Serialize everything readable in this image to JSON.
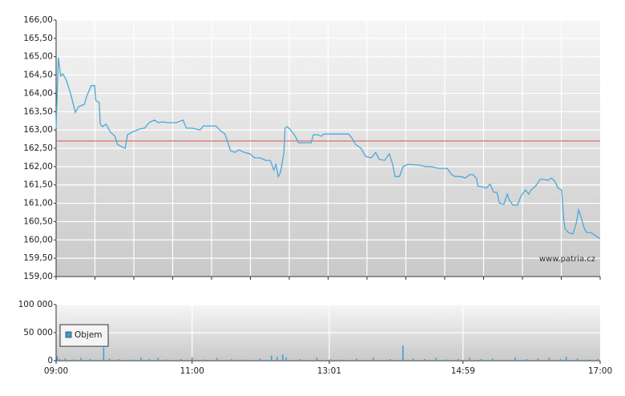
{
  "chart_data": [
    {
      "type": "line",
      "x": [
        "09:00",
        "09:01",
        "09:02",
        "09:04",
        "09:06",
        "09:09",
        "09:13",
        "09:17",
        "09:20",
        "09:25",
        "09:27",
        "09:31",
        "09:34",
        "09:35",
        "09:38",
        "09:39",
        "09:41",
        "09:44",
        "09:48",
        "09:52",
        "09:54",
        "09:58",
        "10:01",
        "10:03",
        "10:07",
        "10:10",
        "10:14",
        "10:18",
        "10:21",
        "10:23",
        "10:27",
        "10:30",
        "10:34",
        "10:39",
        "10:46",
        "10:52",
        "10:55",
        "11:00",
        "11:07",
        "11:10",
        "11:21",
        "11:25",
        "11:29",
        "11:32",
        "11:34",
        "11:38",
        "11:41",
        "11:46",
        "11:51",
        "11:55",
        "12:00",
        "12:05",
        "12:09",
        "12:12",
        "12:14",
        "12:16",
        "12:18",
        "12:21",
        "12:22",
        "12:24",
        "12:27",
        "12:31",
        "12:34",
        "12:41",
        "12:45",
        "12:47",
        "12:51",
        "12:54",
        "12:56",
        "13:03",
        "13:10",
        "13:18",
        "13:21",
        "13:24",
        "13:29",
        "13:33",
        "13:38",
        "13:42",
        "13:45",
        "13:50",
        "13:54",
        "13:57",
        "13:59",
        "14:03",
        "14:06",
        "14:10",
        "14:13",
        "14:20",
        "14:26",
        "14:31",
        "14:38",
        "14:42",
        "14:45",
        "14:49",
        "14:52",
        "14:57",
        "15:01",
        "15:05",
        "15:08",
        "15:11",
        "15:12",
        "15:16",
        "15:19",
        "15:23",
        "15:26",
        "15:29",
        "15:31",
        "15:35",
        "15:38",
        "15:40",
        "15:43",
        "15:47",
        "15:50",
        "15:54",
        "15:57",
        "15:59",
        "16:03",
        "16:07",
        "16:10",
        "16:14",
        "16:17",
        "16:20",
        "16:22",
        "16:23",
        "16:26",
        "16:28",
        "16:29",
        "16:32",
        "16:36",
        "16:39",
        "16:41",
        "16:43",
        "16:46",
        "16:48",
        "16:52",
        "17:00"
      ],
      "values": [
        163.05,
        164.03,
        164.97,
        164.47,
        164.53,
        164.36,
        163.97,
        163.48,
        163.64,
        163.7,
        163.92,
        164.21,
        164.21,
        163.81,
        163.75,
        163.16,
        163.09,
        163.16,
        162.94,
        162.83,
        162.61,
        162.54,
        162.5,
        162.87,
        162.94,
        162.98,
        163.03,
        163.05,
        163.16,
        163.22,
        163.27,
        163.2,
        163.22,
        163.2,
        163.2,
        163.27,
        163.05,
        163.05,
        163.0,
        163.11,
        163.11,
        162.98,
        162.89,
        162.61,
        162.43,
        162.39,
        162.46,
        162.39,
        162.35,
        162.24,
        162.24,
        162.17,
        162.17,
        161.91,
        162.06,
        161.73,
        161.84,
        162.39,
        163.05,
        163.09,
        163.0,
        162.83,
        162.65,
        162.65,
        162.65,
        162.87,
        162.87,
        162.83,
        162.89,
        162.89,
        162.89,
        162.89,
        162.78,
        162.61,
        162.5,
        162.28,
        162.24,
        162.39,
        162.2,
        162.17,
        162.35,
        162.06,
        161.73,
        161.73,
        162.0,
        162.06,
        162.06,
        162.04,
        162.0,
        162.0,
        161.95,
        161.95,
        161.95,
        161.78,
        161.73,
        161.73,
        161.69,
        161.78,
        161.78,
        161.67,
        161.47,
        161.45,
        161.41,
        161.52,
        161.3,
        161.3,
        161.01,
        160.97,
        161.25,
        161.08,
        160.95,
        160.95,
        161.19,
        161.36,
        161.25,
        161.36,
        161.47,
        161.65,
        161.65,
        161.63,
        161.69,
        161.6,
        161.47,
        161.41,
        161.36,
        160.51,
        160.31,
        160.2,
        160.16,
        160.47,
        160.82,
        160.64,
        160.31,
        160.2,
        160.2,
        160.03
      ],
      "color": "#4aa8d8",
      "xlim": [
        "09:00",
        "17:00"
      ],
      "ylim": [
        159,
        166
      ],
      "yticks": [
        {
          "value": 159,
          "label": "159,00"
        },
        {
          "value": 159.5,
          "label": "159,50"
        },
        {
          "value": 160,
          "label": "160,00"
        },
        {
          "value": 160.5,
          "label": "160,50"
        },
        {
          "value": 161,
          "label": "161,00"
        },
        {
          "value": 161.5,
          "label": "161,50"
        },
        {
          "value": 162,
          "label": "162,00"
        },
        {
          "value": 162.5,
          "label": "162,50"
        },
        {
          "value": 163,
          "label": "163,00"
        },
        {
          "value": 163.5,
          "label": "163,50"
        },
        {
          "value": 164,
          "label": "164,00"
        },
        {
          "value": 164.5,
          "label": "164,50"
        },
        {
          "value": 165,
          "label": "165,00"
        },
        {
          "value": 165.5,
          "label": "165,50"
        },
        {
          "value": 166,
          "label": "166,00"
        }
      ],
      "reference_value": 162.7,
      "reference_color": "#d9534f",
      "annotation": "www.patria.cz",
      "grid": true
    },
    {
      "type": "bar",
      "x": [
        "09:01",
        "09:03",
        "09:08",
        "09:15",
        "09:22",
        "09:30",
        "09:42",
        "09:47",
        "09:55",
        "10:05",
        "10:15",
        "10:22",
        "10:30",
        "10:38",
        "10:50",
        "11:00",
        "11:10",
        "11:22",
        "11:35",
        "11:45",
        "12:00",
        "12:10",
        "12:15",
        "12:20",
        "12:23",
        "12:35",
        "12:50",
        "13:02",
        "13:12",
        "13:25",
        "13:40",
        "13:55",
        "14:06",
        "14:15",
        "14:25",
        "14:35",
        "14:45",
        "14:55",
        "15:05",
        "15:15",
        "15:25",
        "15:35",
        "15:45",
        "15:55",
        "16:05",
        "16:15",
        "16:25",
        "16:30",
        "16:40",
        "16:50",
        "16:58"
      ],
      "series": [
        {
          "name": "Objem",
          "color": "#3a9fd0",
          "values": [
            8000,
            3000,
            4000,
            2000,
            5000,
            3000,
            24000,
            4000,
            3000,
            2000,
            6000,
            3000,
            5000,
            2000,
            3000,
            6000,
            2000,
            5000,
            3000,
            2000,
            4000,
            9000,
            7000,
            11000,
            6000,
            3000,
            5000,
            3000,
            2000,
            4000,
            6000,
            3000,
            27000,
            4000,
            3000,
            5000,
            2000,
            3000,
            5000,
            3000,
            4000,
            2000,
            6000,
            3000,
            4000,
            5000,
            3000,
            7000,
            4000,
            2000,
            3000
          ]
        }
      ],
      "xlim": [
        "09:00",
        "17:00"
      ],
      "xticks": [
        "09:00",
        "11:00",
        "13:01",
        "14:59",
        "17:00"
      ],
      "ylim": [
        0,
        100000
      ],
      "yticks": [
        0,
        {
          "value": 50000,
          "label": "50 000"
        },
        {
          "value": 100000,
          "label": "100 000"
        }
      ],
      "legend": "upper left",
      "grid": true
    }
  ]
}
